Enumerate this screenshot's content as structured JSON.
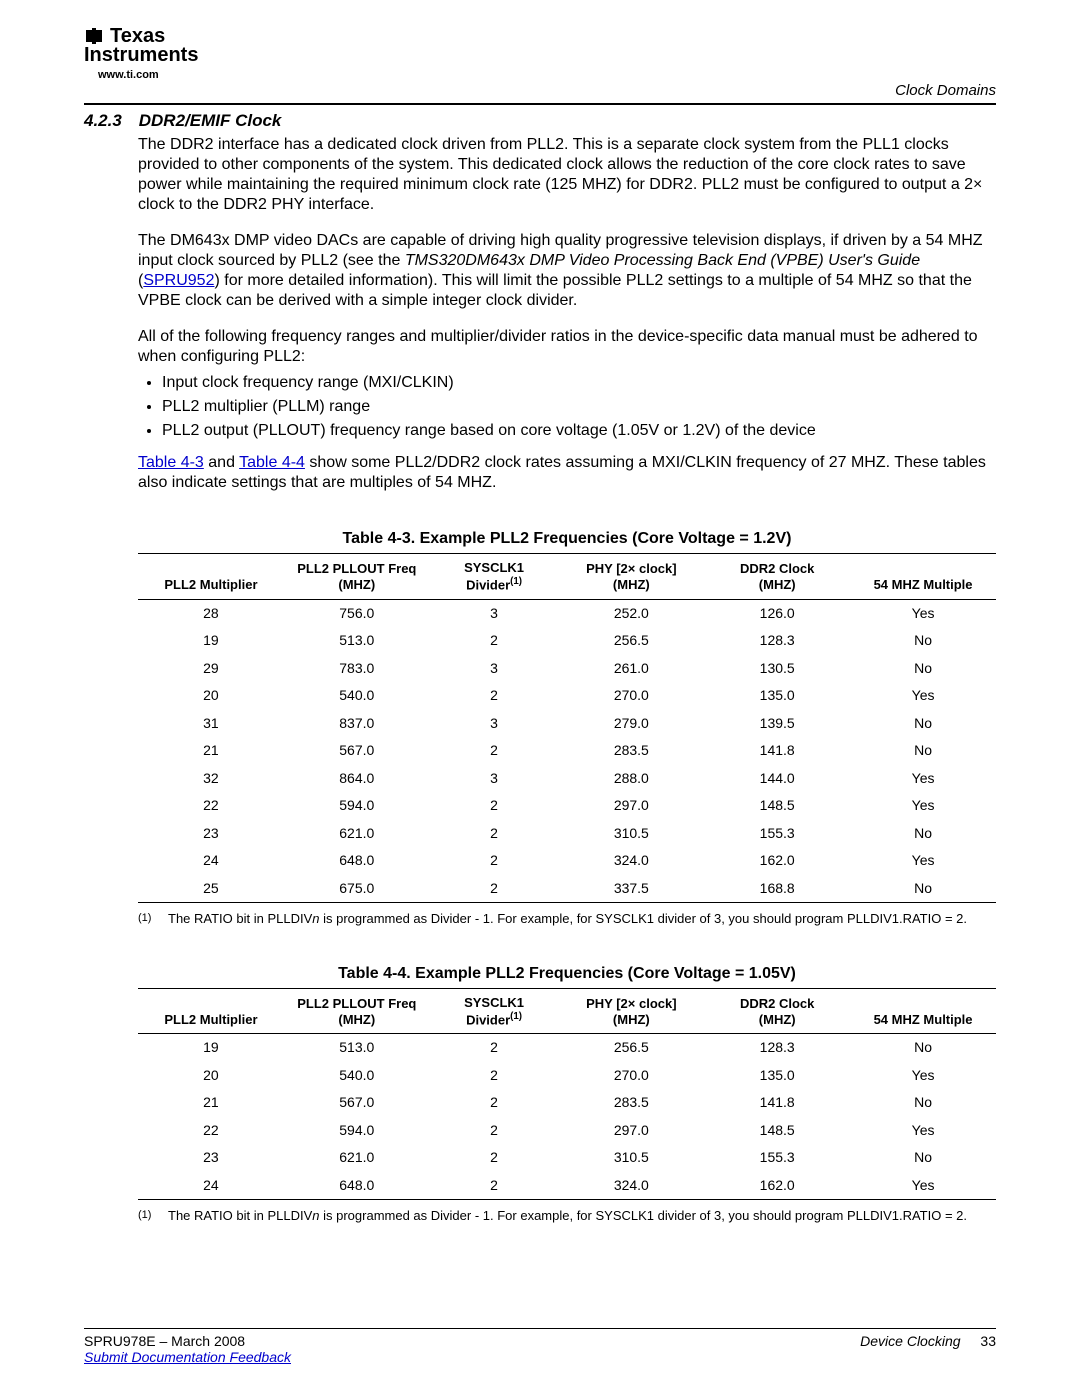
{
  "header": {
    "logo_line1": "Texas",
    "logo_line2": "Instruments",
    "logo_url": "www.ti.com",
    "top_right": "Clock Domains"
  },
  "section": {
    "number": "4.2.3",
    "title": "DDR2/EMIF Clock"
  },
  "paragraphs": {
    "p1": "The DDR2 interface has a dedicated clock driven from PLL2. This is a separate clock system from the PLL1 clocks provided to other components of the system. This dedicated clock allows the reduction of the core clock rates to save power while maintaining the required minimum clock rate (125 MHZ) for DDR2. PLL2 must be configured to output a 2× clock to the DDR2 PHY interface.",
    "p2_a": "The DM643x DMP video DACs are capable of driving high quality progressive television displays, if driven by a 54 MHZ input clock sourced by PLL2 (see the ",
    "p2_em": "TMS320DM643x DMP Video Processing Back End (VPBE) User's Guide",
    "p2_b": " (",
    "p2_link": "SPRU952",
    "p2_c": ") for more detailed information). This will limit the possible PLL2 settings to a multiple of 54 MHZ so that the VPBE clock can be derived with a simple integer clock divider.",
    "p3": "All of the following frequency ranges and multiplier/divider ratios in the device-specific data manual must be adhered to when configuring PLL2:",
    "p4_link1": "Table 4-3",
    "p4_mid": " and ",
    "p4_link2": "Table 4-4",
    "p4_end": " show some PLL2/DDR2 clock rates assuming a MXI/CLKIN frequency of 27 MHZ. These tables also indicate settings that are multiples of 54 MHZ."
  },
  "bullets": [
    "Input clock frequency range (MXI/CLKIN)",
    "PLL2 multiplier (PLLM) range",
    "PLL2 output (PLLOUT) frequency range based on core voltage (1.05V or 1.2V) of the device"
  ],
  "table3": {
    "title": "Table 4-3. Example PLL2 Frequencies (Core Voltage = 1.2V)",
    "columns": [
      "PLL2 Multiplier",
      "PLL2 PLLOUT Freq (MHZ)",
      "SYSCLK1 Divider",
      "PHY [2× clock] (MHZ)",
      "DDR2 Clock (MHZ)",
      "54 MHZ Multiple"
    ],
    "col_widths": [
      "17%",
      "17%",
      "15%",
      "17%",
      "17%",
      "17%"
    ],
    "footnote_col_index": 2,
    "rows": [
      [
        "28",
        "756.0",
        "3",
        "252.0",
        "126.0",
        "Yes"
      ],
      [
        "19",
        "513.0",
        "2",
        "256.5",
        "128.3",
        "No"
      ],
      [
        "29",
        "783.0",
        "3",
        "261.0",
        "130.5",
        "No"
      ],
      [
        "20",
        "540.0",
        "2",
        "270.0",
        "135.0",
        "Yes"
      ],
      [
        "31",
        "837.0",
        "3",
        "279.0",
        "139.5",
        "No"
      ],
      [
        "21",
        "567.0",
        "2",
        "283.5",
        "141.8",
        "No"
      ],
      [
        "32",
        "864.0",
        "3",
        "288.0",
        "144.0",
        "Yes"
      ],
      [
        "22",
        "594.0",
        "2",
        "297.0",
        "148.5",
        "Yes"
      ],
      [
        "23",
        "621.0",
        "2",
        "310.5",
        "155.3",
        "No"
      ],
      [
        "24",
        "648.0",
        "2",
        "324.0",
        "162.0",
        "Yes"
      ],
      [
        "25",
        "675.0",
        "2",
        "337.5",
        "168.8",
        "No"
      ]
    ],
    "footnote_label": "(1)",
    "footnote_a": "The RATIO bit in PLLDIV",
    "footnote_em": "n",
    "footnote_b": " is programmed as Divider - 1. For example, for SYSCLK1 divider of 3, you should program PLLDIV1.RATIO = 2."
  },
  "table4": {
    "title": "Table 4-4. Example PLL2 Frequencies (Core Voltage = 1.05V)",
    "columns": [
      "PLL2 Multiplier",
      "PLL2 PLLOUT Freq (MHZ)",
      "SYSCLK1 Divider",
      "PHY [2× clock] (MHZ)",
      "DDR2 Clock (MHZ)",
      "54 MHZ Multiple"
    ],
    "col_widths": [
      "17%",
      "17%",
      "15%",
      "17%",
      "17%",
      "17%"
    ],
    "footnote_col_index": 2,
    "rows": [
      [
        "19",
        "513.0",
        "2",
        "256.5",
        "128.3",
        "No"
      ],
      [
        "20",
        "540.0",
        "2",
        "270.0",
        "135.0",
        "Yes"
      ],
      [
        "21",
        "567.0",
        "2",
        "283.5",
        "141.8",
        "No"
      ],
      [
        "22",
        "594.0",
        "2",
        "297.0",
        "148.5",
        "Yes"
      ],
      [
        "23",
        "621.0",
        "2",
        "310.5",
        "155.3",
        "No"
      ],
      [
        "24",
        "648.0",
        "2",
        "324.0",
        "162.0",
        "Yes"
      ]
    ],
    "footnote_label": "(1)",
    "footnote_a": "The RATIO bit in PLLDIV",
    "footnote_em": "n",
    "footnote_b": " is programmed as Divider - 1. For example, for SYSCLK1 divider of 3, you should program PLLDIV1.RATIO = 2."
  },
  "footer": {
    "left": "SPRU978E – March 2008",
    "feedback": "Submit Documentation Feedback",
    "right_label": "Device Clocking",
    "page": "33"
  }
}
